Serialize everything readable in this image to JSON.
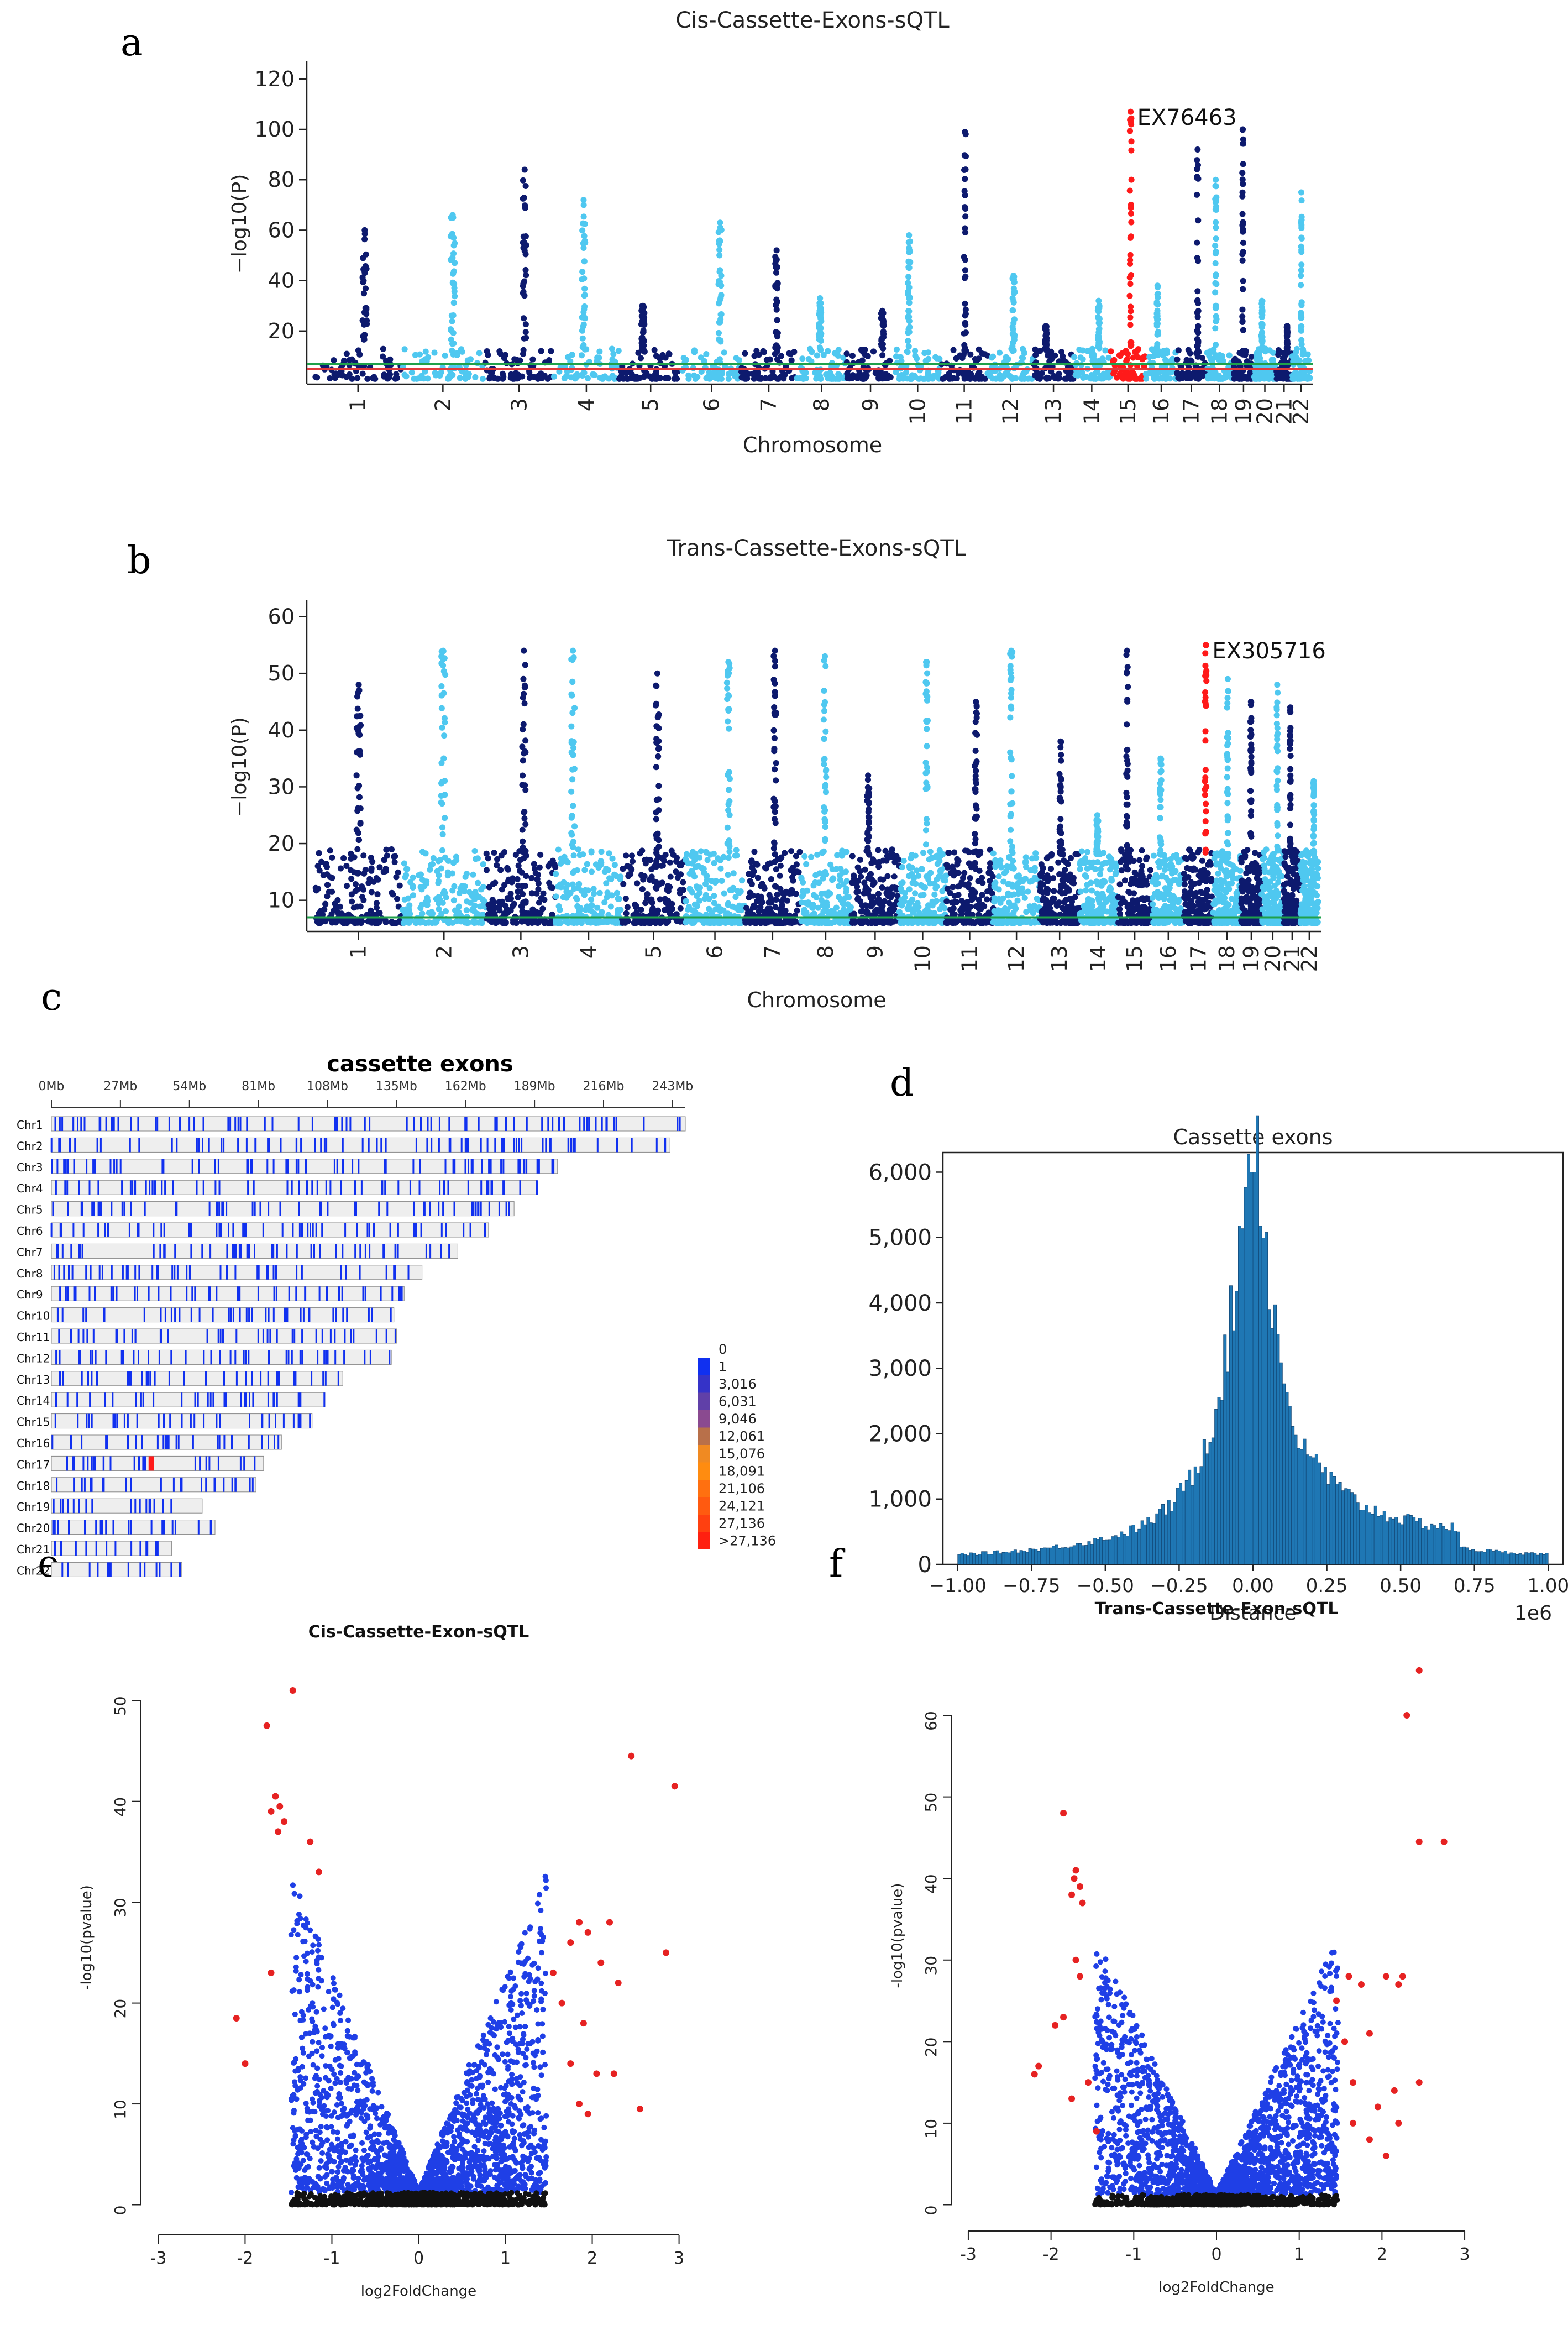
{
  "panel_letters": {
    "a": "a",
    "b": "b",
    "c": "c",
    "d": "d",
    "e": "e",
    "f": "f"
  },
  "colors": {
    "dark": "#0d1a6e",
    "light": "#4fc8f0",
    "highlight": "#ff1a1a",
    "threshold_green": "#1fa14a",
    "threshold_red": "#e03a3a",
    "hist": "#1f77b4",
    "volcano_blue": "#1f3fe6",
    "volcano_red": "#e62222",
    "volcano_black": "#111111"
  },
  "chart_data": [
    {
      "id": "a",
      "type": "scatter",
      "subtype": "manhattan",
      "title": "Cis-Cassette-Exons-sQTL",
      "xlabel": "Chromosome",
      "ylabel": "−log10(P)",
      "ylim": [
        0,
        125
      ],
      "yticks": [
        20,
        40,
        60,
        80,
        100,
        120
      ],
      "categories": [
        "1",
        "2",
        "3",
        "4",
        "5",
        "6",
        "7",
        "8",
        "9",
        "10",
        "11",
        "12",
        "13",
        "14",
        "15",
        "16",
        "17",
        "18",
        "19",
        "20",
        "21",
        "22"
      ],
      "peaks": [
        60,
        66,
        84,
        72,
        30,
        63,
        52,
        33,
        28,
        58,
        99,
        42,
        22,
        32,
        107,
        38,
        92,
        80,
        100,
        32,
        22,
        75
      ],
      "thresholds": [
        5,
        7
      ],
      "highlight": {
        "chromosome": "15",
        "label": "EX76463",
        "value": 107
      }
    },
    {
      "id": "b",
      "type": "scatter",
      "subtype": "manhattan",
      "title": "Trans-Cassette-Exons-sQTL",
      "xlabel": "Chromosome",
      "ylabel": "−log10(P)",
      "ylim": [
        5,
        62
      ],
      "yticks": [
        10,
        20,
        30,
        40,
        50,
        60
      ],
      "categories": [
        "1",
        "2",
        "3",
        "4",
        "5",
        "6",
        "7",
        "8",
        "9",
        "10",
        "11",
        "12",
        "13",
        "14",
        "15",
        "16",
        "17",
        "18",
        "19",
        "20",
        "21",
        "22"
      ],
      "peaks": [
        48,
        54,
        54,
        54,
        50,
        52,
        54,
        53,
        32,
        52,
        45,
        54,
        38,
        25,
        54,
        35,
        55,
        49,
        45,
        48,
        44,
        31
      ],
      "thresholds": [
        7
      ],
      "highlight": {
        "chromosome": "17",
        "label": "EX305716",
        "value": 55
      }
    },
    {
      "id": "c",
      "type": "heatmap",
      "subtype": "chromosome-density",
      "title": "cassette exons",
      "axis_ticks": [
        "0Mb",
        "27Mb",
        "54Mb",
        "81Mb",
        "108Mb",
        "135Mb",
        "162Mb",
        "189Mb",
        "216Mb",
        "243Mb"
      ],
      "chromosomes": [
        "Chr1",
        "Chr2",
        "Chr3",
        "Chr4",
        "Chr5",
        "Chr6",
        "Chr7",
        "Chr8",
        "Chr9",
        "Chr10",
        "Chr11",
        "Chr12",
        "Chr13",
        "Chr14",
        "Chr15",
        "Chr16",
        "Chr17",
        "Chr18",
        "Chr19",
        "Chr20",
        "Chr21",
        "Chr22"
      ],
      "lengths_mb": [
        248,
        242,
        198,
        190,
        181,
        171,
        159,
        145,
        138,
        134,
        135,
        133,
        114,
        107,
        102,
        90,
        83,
        80,
        59,
        64,
        47,
        51
      ],
      "legend": [
        "0",
        "1",
        "3,016",
        "6,031",
        "9,046",
        "12,061",
        "15,076",
        "18,091",
        "21,106",
        "24,121",
        "27,136",
        ">27,136"
      ],
      "legend_colors": [
        "#ffffff",
        "#1030f0",
        "#3533c8",
        "#6040a8",
        "#8a4a90",
        "#b8704a",
        "#f08a22",
        "#ff8c10",
        "#ff7010",
        "#ff5a10",
        "#ff4010",
        "#ff2010"
      ]
    },
    {
      "id": "d",
      "type": "bar",
      "subtype": "histogram",
      "title": "Cassette exons",
      "xlabel": "Distance",
      "x_offset_label": "1e6",
      "xlim": [
        -1.05,
        1.05
      ],
      "xticks": [
        "−1.00",
        "−0.75",
        "−0.50",
        "−0.25",
        "0.00",
        "0.25",
        "0.50",
        "0.75",
        "1.00"
      ],
      "ylim": [
        0,
        6300
      ],
      "yticks": [
        "0",
        "1,000",
        "2,000",
        "3,000",
        "4,000",
        "5,000",
        "6,000"
      ],
      "peak": 6000
    },
    {
      "id": "e",
      "type": "scatter",
      "subtype": "volcano",
      "title": "Cis-Cassette-Exon-sQTL",
      "xlabel": "log2FoldChange",
      "ylabel": "-log10(pvalue)",
      "xlim": [
        -3.2,
        3.2
      ],
      "ylim": [
        -2,
        55
      ],
      "xticks": [
        "-3",
        "-2",
        "-1",
        "0",
        "1",
        "2",
        "3"
      ],
      "yticks": [
        "0",
        "10",
        "20",
        "30",
        "40",
        "50"
      ],
      "red_points": [
        [
          -1.45,
          51
        ],
        [
          -1.75,
          47.5
        ],
        [
          -1.65,
          40.5
        ],
        [
          -1.6,
          39.5
        ],
        [
          -1.7,
          39
        ],
        [
          -1.55,
          38
        ],
        [
          -1.62,
          37
        ],
        [
          -1.25,
          36
        ],
        [
          -1.15,
          33
        ],
        [
          -1.7,
          23
        ],
        [
          -2.0,
          14
        ],
        [
          -2.1,
          18.5
        ],
        [
          2.45,
          44.5
        ],
        [
          2.95,
          41.5
        ],
        [
          2.85,
          25
        ],
        [
          2.2,
          28
        ],
        [
          1.85,
          28
        ],
        [
          1.55,
          23
        ],
        [
          1.75,
          26
        ],
        [
          1.95,
          27
        ],
        [
          2.1,
          24
        ],
        [
          2.3,
          22
        ],
        [
          1.65,
          20
        ],
        [
          1.9,
          18
        ],
        [
          1.75,
          14
        ],
        [
          2.05,
          13
        ],
        [
          2.25,
          13
        ],
        [
          1.95,
          9
        ],
        [
          2.55,
          9.5
        ],
        [
          1.85,
          10
        ]
      ]
    },
    {
      "id": "f",
      "type": "scatter",
      "subtype": "volcano",
      "title": "Trans-Cassette-Exon-sQTL",
      "xlabel": "log2FoldChange",
      "ylabel": "-log10(pvalue)",
      "xlim": [
        -3.2,
        3.2
      ],
      "ylim": [
        -2,
        68
      ],
      "xticks": [
        "-3",
        "-2",
        "-1",
        "0",
        "1",
        "2",
        "3"
      ],
      "yticks": [
        "0",
        "10",
        "20",
        "30",
        "40",
        "50",
        "60"
      ],
      "red_points": [
        [
          2.45,
          65.5
        ],
        [
          2.3,
          60
        ],
        [
          2.45,
          44.5
        ],
        [
          2.75,
          44.5
        ],
        [
          -1.85,
          48
        ],
        [
          -1.7,
          41
        ],
        [
          -1.72,
          40
        ],
        [
          -1.65,
          39
        ],
        [
          -1.75,
          38
        ],
        [
          -1.62,
          37
        ],
        [
          -1.7,
          30
        ],
        [
          -1.65,
          28
        ],
        [
          -1.85,
          23
        ],
        [
          -1.95,
          22
        ],
        [
          -2.15,
          17
        ],
        [
          -2.2,
          16
        ],
        [
          -1.55,
          15
        ],
        [
          -1.75,
          13
        ],
        [
          -1.45,
          9
        ],
        [
          1.6,
          28
        ],
        [
          1.75,
          27
        ],
        [
          2.05,
          28
        ],
        [
          2.25,
          28
        ],
        [
          2.2,
          27
        ],
        [
          1.55,
          20
        ],
        [
          1.45,
          25
        ],
        [
          1.85,
          21
        ],
        [
          1.65,
          15
        ],
        [
          1.95,
          12
        ],
        [
          2.15,
          14
        ],
        [
          2.45,
          15
        ],
        [
          1.65,
          10
        ],
        [
          1.85,
          8
        ],
        [
          2.05,
          6
        ],
        [
          2.2,
          10
        ]
      ]
    }
  ]
}
